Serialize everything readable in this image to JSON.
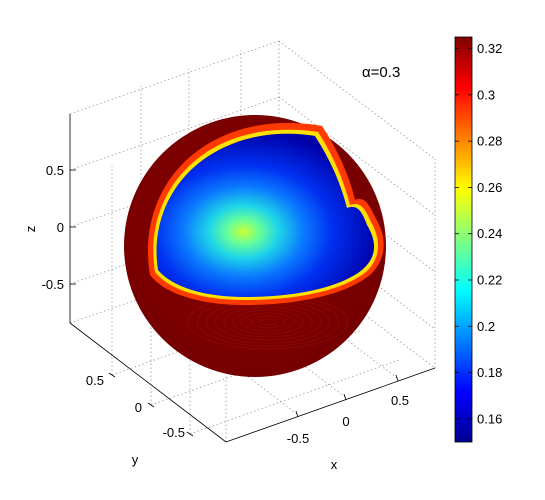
{
  "chart_data": {
    "type": "heatmap",
    "subtype": "3d-surface-cutaway-sphere",
    "annotation": "α=0.3",
    "xlabel": "x",
    "ylabel": "y",
    "zlabel": "z",
    "x_ticks": [
      "-0.5",
      "0",
      "0.5"
    ],
    "y_ticks": [
      "0.5",
      "0",
      "-0.5"
    ],
    "z_ticks": [
      "0.5",
      "0",
      "-0.5"
    ],
    "grid": true,
    "colorbar": {
      "ticks": [
        "0.32",
        "0.3",
        "0.28",
        "0.26",
        "0.24",
        "0.22",
        "0.2",
        "0.18",
        "0.16"
      ],
      "tick_values": [
        0.32,
        0.3,
        0.28,
        0.26,
        0.24,
        0.22,
        0.2,
        0.18,
        0.16
      ],
      "range": [
        0.15,
        0.325
      ],
      "colormap": "jet",
      "placement": "right"
    },
    "surface": {
      "outer_shell_value": 0.325,
      "cut_face_rim_value": 0.325,
      "cut_face_edge_value": 0.16,
      "cut_face_center_value": 0.245
    }
  },
  "colors": {
    "shell": "#7f0000",
    "rim": "#ff2a00",
    "deep_blue": "#0000b0",
    "blue": "#0a40ff",
    "cyan": "#1ed4e8",
    "yellow_green": "#c8ff37"
  }
}
